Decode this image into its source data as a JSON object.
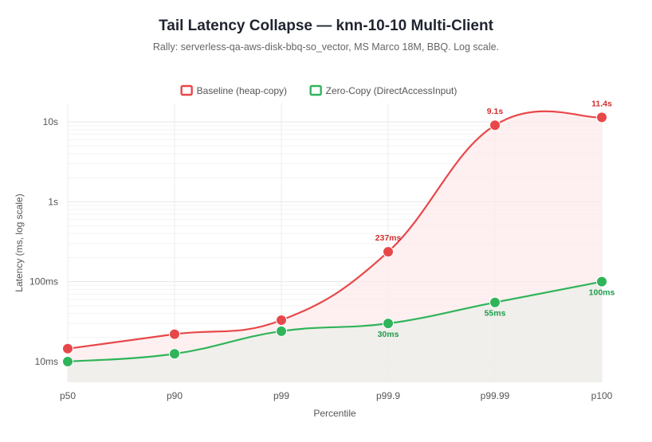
{
  "header": {
    "title": "Tail Latency Collapse — knn-10-10 Multi-Client",
    "subtitle": "Rally: serverless-qa-aws-disk-bbq-so_vector, MS Marco 18M, BBQ. Log scale."
  },
  "chart_data": {
    "type": "line",
    "categories": [
      "p50",
      "p90",
      "p99",
      "p99.9",
      "p99.99",
      "p100"
    ],
    "xlabel": "Percentile",
    "ylabel": "Latency (ms, log scale)",
    "y_scale": "log",
    "ylim": [
      5.5,
      17000
    ],
    "y_ticks": [
      {
        "value": 10,
        "label": "10ms"
      },
      {
        "value": 100,
        "label": "100ms"
      },
      {
        "value": 1000,
        "label": "1s"
      },
      {
        "value": 10000,
        "label": "10s"
      }
    ],
    "legend_position": "top-center",
    "grid": true,
    "series": [
      {
        "name": "Baseline (heap-copy)",
        "color": "#e8474a",
        "fill": "#fdeaea",
        "values": [
          14.5,
          22,
          33,
          237,
          9100,
          11400
        ],
        "labels": [
          "",
          "",
          "",
          "237ms",
          "9.1s",
          "11.4s"
        ],
        "label_position": "above"
      },
      {
        "name": "Zero-Copy (DirectAccessInput)",
        "color": "#2fb45a",
        "fill": "#eeeeea",
        "values": [
          10,
          12.5,
          24,
          30,
          55,
          100
        ],
        "labels": [
          "",
          "",
          "",
          "30ms",
          "55ms",
          "100ms"
        ],
        "label_position": "below"
      }
    ]
  }
}
